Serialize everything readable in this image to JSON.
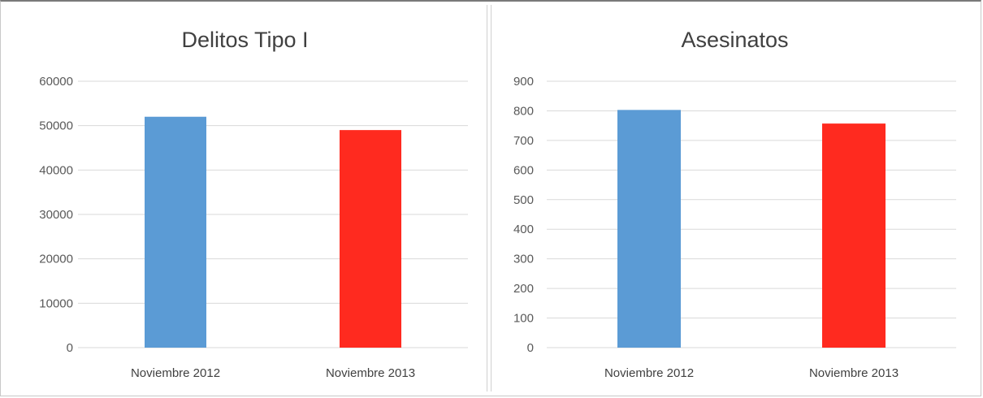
{
  "chart_data": [
    {
      "type": "bar",
      "title": "Delitos Tipo I",
      "categories": [
        "Noviembre 2012",
        "Noviembre 2013"
      ],
      "values": [
        52000,
        49000
      ],
      "colors": [
        "#5b9bd5",
        "#ff2a1f"
      ],
      "ylim": [
        0,
        60000
      ],
      "yticks": [
        0,
        10000,
        20000,
        30000,
        40000,
        50000,
        60000
      ],
      "grid": true,
      "legend": "none"
    },
    {
      "type": "bar",
      "title": "Asesinatos",
      "categories": [
        "Noviembre 2012",
        "Noviembre 2013"
      ],
      "values": [
        803,
        757
      ],
      "colors": [
        "#5b9bd5",
        "#ff2a1f"
      ],
      "ylim": [
        0,
        900
      ],
      "yticks": [
        0,
        100,
        200,
        300,
        400,
        500,
        600,
        700,
        800,
        900
      ],
      "grid": true,
      "legend": "none"
    }
  ]
}
